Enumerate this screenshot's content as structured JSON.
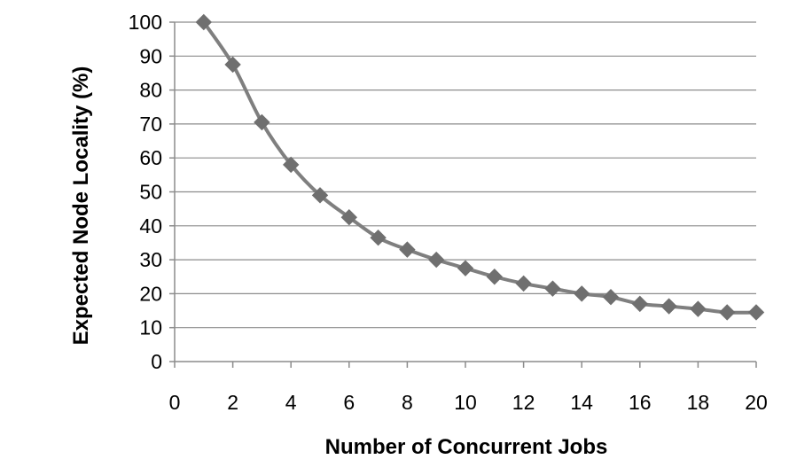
{
  "chart_data": {
    "type": "line",
    "title": "",
    "xlabel": "Number of Concurrent Jobs",
    "ylabel": "Expected Node Locality (%)",
    "xlim": [
      0,
      20
    ],
    "ylim": [
      0,
      100
    ],
    "xticks": [
      "0",
      "2",
      "4",
      "6",
      "8",
      "10",
      "12",
      "14",
      "16",
      "18",
      "20"
    ],
    "yticks": [
      "0",
      "10",
      "20",
      "30",
      "40",
      "50",
      "60",
      "70",
      "80",
      "90",
      "100"
    ],
    "grid": "horizontal",
    "legend": "none",
    "series": [
      {
        "x": [
          1,
          2,
          3,
          4,
          5,
          6,
          7,
          8,
          9,
          10,
          11,
          12,
          13,
          14,
          15,
          16,
          17,
          18,
          19,
          20
        ],
        "values": [
          100,
          87.5,
          70.5,
          58,
          49,
          42.5,
          36.5,
          33,
          30,
          27.5,
          25,
          23,
          21.5,
          20,
          19,
          17,
          16.3,
          15.5,
          14.5,
          14.5
        ],
        "color": "#7f7f7f",
        "marker": "diamond"
      }
    ]
  }
}
